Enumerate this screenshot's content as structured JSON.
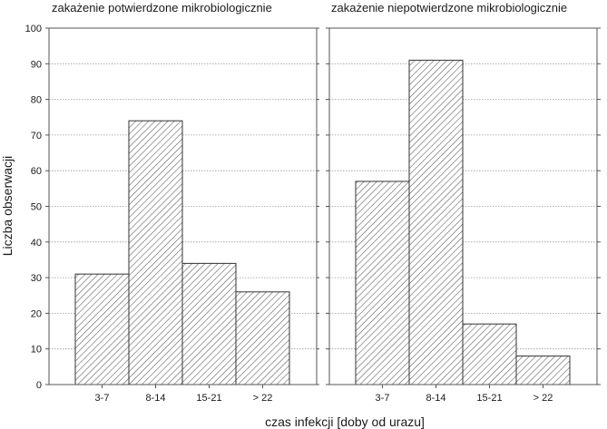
{
  "chart_data": {
    "type": "bar",
    "ylabel": "Liczba obserwacji",
    "xlabel": "czas infekcji [doby od urazu]",
    "ylim": [
      0,
      100
    ],
    "yticks": [
      0,
      10,
      20,
      30,
      40,
      50,
      60,
      70,
      80,
      90,
      100
    ],
    "grid": true,
    "bar_fill": "hatched",
    "colors": {
      "bar_stroke": "#333333",
      "hatch": "#555555",
      "grid": "#9a9a9a",
      "frame": "#555555"
    },
    "panels": [
      {
        "title": "zakażenie potwierdzone mikrobiologicznie",
        "categories": [
          "3-7",
          "8-14",
          "15-21",
          "> 22"
        ],
        "values": [
          31,
          74,
          34,
          26
        ]
      },
      {
        "title": "zakażenie niepotwierdzone mikrobiologicznie",
        "categories": [
          "3-7",
          "8-14",
          "15-21",
          "> 22"
        ],
        "values": [
          57,
          91,
          17,
          8
        ]
      }
    ]
  }
}
